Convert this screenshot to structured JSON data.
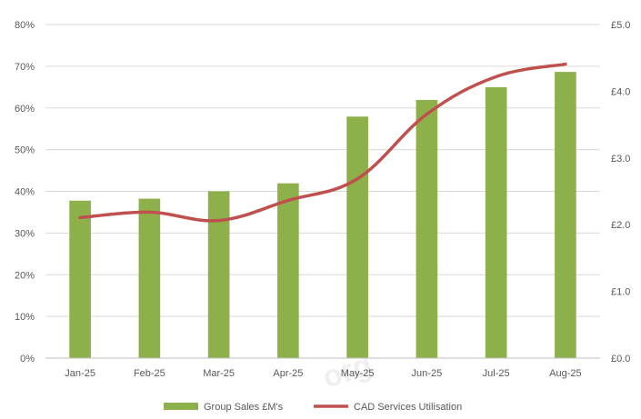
{
  "chart_data": {
    "type": "bar",
    "categories": [
      "Jan-25",
      "Feb-25",
      "Mar-25",
      "Apr-25",
      "May-25",
      "Jun-25",
      "Jul-25",
      "Aug-25"
    ],
    "series": [
      {
        "name": "Group Sales £M's",
        "type": "bar",
        "axis": "right",
        "values": [
          2.36,
          2.39,
          2.5,
          2.62,
          3.62,
          3.87,
          4.06,
          4.29
        ],
        "color": "#8db04a"
      },
      {
        "name": "CAD Services Utilisation",
        "type": "line",
        "axis": "left",
        "values": [
          0.337,
          0.35,
          0.33,
          0.378,
          0.43,
          0.585,
          0.675,
          0.705
        ],
        "color": "#c0504d"
      }
    ],
    "y_left": {
      "lim": [
        0,
        0.8
      ],
      "ticks": [
        0,
        0.1,
        0.2,
        0.3,
        0.4,
        0.5,
        0.6,
        0.7,
        0.8
      ],
      "tick_labels": [
        "0%",
        "10%",
        "20%",
        "30%",
        "40%",
        "50%",
        "60%",
        "70%",
        "80%"
      ]
    },
    "y_right": {
      "lim": [
        0,
        5
      ],
      "ticks": [
        0,
        1,
        2,
        3,
        4,
        5
      ],
      "tick_labels": [
        "£0.0",
        "£1.0",
        "£2.0",
        "£3.0",
        "£4.0",
        "£5.0"
      ]
    },
    "grid": true,
    "legend": "bottom",
    "title": "",
    "xlabel": "",
    "ylabel": ""
  },
  "watermark": "org",
  "colors": {
    "grid": "#d9d9d9",
    "axis": "#bfbfbf",
    "text": "#595959"
  }
}
